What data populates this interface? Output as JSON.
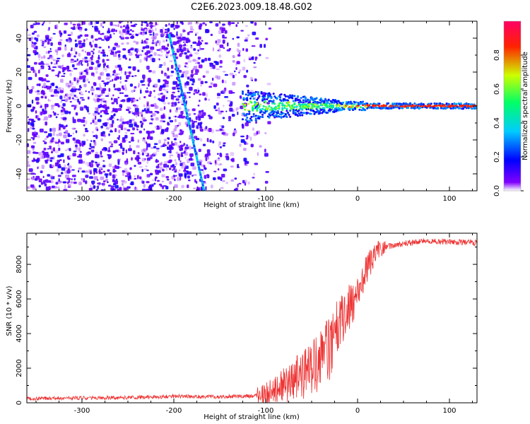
{
  "title": "C2E6.2023.009.18.48.G02",
  "colors": {
    "series_line": "#ee3333",
    "colormap": [
      "#ffffff",
      "#8000ff",
      "#0000ff",
      "#00ccff",
      "#00ff66",
      "#ccff00",
      "#ff2200",
      "#ff0066"
    ]
  },
  "chart_data": [
    {
      "type": "heatmap",
      "name": "spectrogram",
      "title": "C2E6.2023.009.18.48.G02",
      "xlabel": "Height of straight line (km)",
      "ylabel": "Frequency (Hz)",
      "xlim": [
        -360,
        130
      ],
      "ylim": [
        -50,
        50
      ],
      "xticks": [
        -300,
        -200,
        -100,
        0,
        100
      ],
      "xtick_labels": [
        "-300",
        "-200",
        "-100",
        "0",
        "100"
      ],
      "yticks": [
        -40,
        -20,
        0,
        20,
        40
      ],
      "ytick_labels": [
        "-40",
        "-20",
        "0",
        "20",
        "40"
      ],
      "colorbar": {
        "label": "Normalized spectral amplitude",
        "range": [
          0.0,
          1.0
        ],
        "ticks": [
          0.0,
          0.2,
          0.4,
          0.6,
          0.8
        ],
        "tick_labels": [
          "0.0",
          "0.2",
          "0.4",
          "0.6",
          "0.8"
        ]
      },
      "features": {
        "noise_region_km": [
          -360,
          -100
        ],
        "diagonal_trace": {
          "from": [
            -205,
            42
          ],
          "to": [
            -167,
            -50
          ]
        },
        "signal_band": {
          "start_km": -125,
          "end_km": 130,
          "frequency_hz": 0
        }
      }
    },
    {
      "type": "line",
      "name": "snr",
      "xlabel": "Height of straight line (km)",
      "ylabel": "SNR (10 * v/v)",
      "xlim": [
        -360,
        130
      ],
      "ylim": [
        0,
        9800
      ],
      "xticks": [
        -300,
        -200,
        -100,
        0,
        100
      ],
      "xtick_labels": [
        "-300",
        "-200",
        "-100",
        "0",
        "100"
      ],
      "yticks": [
        0,
        2000,
        4000,
        6000,
        8000
      ],
      "ytick_labels": [
        "0",
        "2000",
        "4000",
        "6000",
        "8000"
      ],
      "series": [
        {
          "name": "SNR",
          "x": [
            -360,
            -300,
            -250,
            -200,
            -150,
            -120,
            -100,
            -90,
            -80,
            -70,
            -60,
            -50,
            -40,
            -30,
            -25,
            -20,
            -15,
            -10,
            -5,
            0,
            5,
            10,
            20,
            30,
            50,
            75,
            100,
            130
          ],
          "y": [
            250,
            280,
            300,
            380,
            350,
            380,
            450,
            700,
            1000,
            1300,
            1600,
            2000,
            2400,
            3200,
            4000,
            4700,
            5100,
            5400,
            5800,
            6200,
            6900,
            7700,
            8700,
            9000,
            9200,
            9350,
            9300,
            9250
          ]
        }
      ]
    }
  ]
}
